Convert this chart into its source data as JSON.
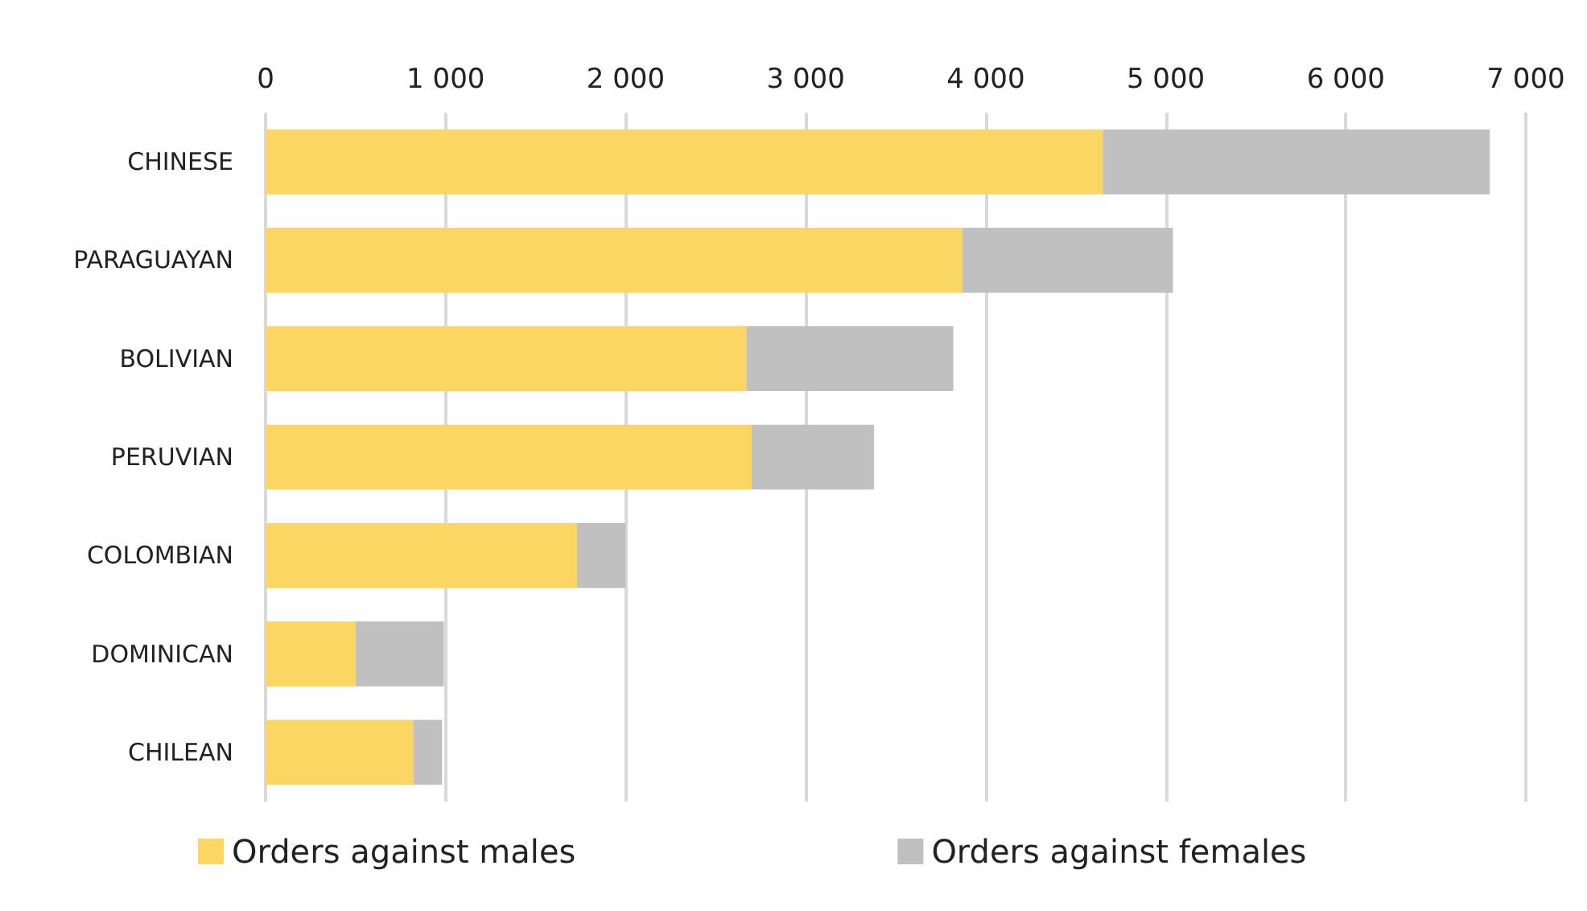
{
  "chart_data": {
    "type": "bar",
    "orientation": "horizontal",
    "stacked": true,
    "categories": [
      "CHINESE",
      "PARAGUAYAN",
      "BOLIVIAN",
      "PERUVIAN",
      "COLOMBIAN",
      "DOMINICAN",
      "CHILEAN"
    ],
    "series": [
      {
        "name": "Orders against males",
        "color": "#fcd663",
        "values": [
          4650,
          3870,
          2670,
          2700,
          1730,
          500,
          820
        ]
      },
      {
        "name": "Orders against females",
        "color": "#c0c0c0",
        "values": [
          2150,
          1170,
          1150,
          680,
          270,
          490,
          160
        ]
      }
    ],
    "xlim": [
      0,
      7000
    ],
    "xticks": [
      {
        "value": 0,
        "label": "0"
      },
      {
        "value": 1000,
        "label": "1 000"
      },
      {
        "value": 2000,
        "label": "2 000"
      },
      {
        "value": 3000,
        "label": "3 000"
      },
      {
        "value": 4000,
        "label": "4 000"
      },
      {
        "value": 5000,
        "label": "5 000"
      },
      {
        "value": 6000,
        "label": "6 000"
      },
      {
        "value": 7000,
        "label": "7 000"
      }
    ],
    "grid": "x",
    "legend": "bottom"
  }
}
